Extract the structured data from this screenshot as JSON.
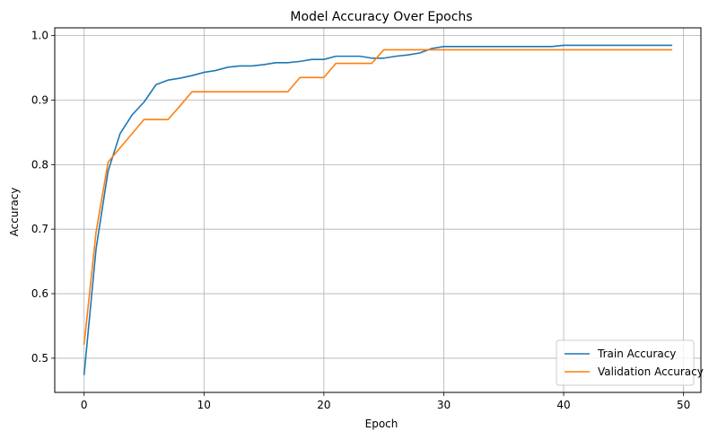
{
  "chart_data": {
    "type": "line",
    "title": "Model Accuracy Over Epochs",
    "xlabel": "Epoch",
    "ylabel": "Accuracy",
    "xlim": [
      -2.45,
      51.45
    ],
    "ylim": [
      0.447,
      1.012
    ],
    "xticks": [
      0,
      10,
      20,
      30,
      40,
      50
    ],
    "yticks": [
      0.5,
      0.6,
      0.7,
      0.8,
      0.9,
      1.0
    ],
    "xtick_labels": [
      "0",
      "10",
      "20",
      "30",
      "40",
      "50"
    ],
    "ytick_labels": [
      "0.5",
      "0.6",
      "0.7",
      "0.8",
      "0.9",
      "1.0"
    ],
    "grid": true,
    "legend_position": "lower-right",
    "x": [
      0,
      1,
      2,
      3,
      4,
      5,
      6,
      7,
      8,
      9,
      10,
      11,
      12,
      13,
      14,
      15,
      16,
      17,
      18,
      19,
      20,
      21,
      22,
      23,
      24,
      25,
      26,
      27,
      28,
      29,
      30,
      31,
      32,
      33,
      34,
      35,
      36,
      37,
      38,
      39,
      40,
      41,
      42,
      43,
      44,
      45,
      46,
      47,
      48,
      49
    ],
    "series": [
      {
        "name": "Train Accuracy",
        "color": "#1f77b4",
        "values": [
          0.475,
          0.67,
          0.79,
          0.848,
          0.877,
          0.897,
          0.924,
          0.931,
          0.934,
          0.938,
          0.943,
          0.946,
          0.951,
          0.953,
          0.953,
          0.955,
          0.958,
          0.958,
          0.96,
          0.963,
          0.963,
          0.968,
          0.968,
          0.968,
          0.965,
          0.965,
          0.968,
          0.97,
          0.973,
          0.98,
          0.983,
          0.983,
          0.983,
          0.983,
          0.983,
          0.983,
          0.983,
          0.983,
          0.983,
          0.983,
          0.985,
          0.985,
          0.985,
          0.985,
          0.985,
          0.985,
          0.985,
          0.985,
          0.985,
          0.985
        ]
      },
      {
        "name": "Validation Accuracy",
        "color": "#ff7f0e",
        "values": [
          0.522,
          0.696,
          0.804,
          0.826,
          0.848,
          0.87,
          0.87,
          0.87,
          0.891,
          0.913,
          0.913,
          0.913,
          0.913,
          0.913,
          0.913,
          0.913,
          0.913,
          0.913,
          0.935,
          0.935,
          0.935,
          0.957,
          0.957,
          0.957,
          0.957,
          0.978,
          0.978,
          0.978,
          0.978,
          0.978,
          0.978,
          0.978,
          0.978,
          0.978,
          0.978,
          0.978,
          0.978,
          0.978,
          0.978,
          0.978,
          0.978,
          0.978,
          0.978,
          0.978,
          0.978,
          0.978,
          0.978,
          0.978,
          0.978,
          0.978
        ]
      }
    ]
  }
}
